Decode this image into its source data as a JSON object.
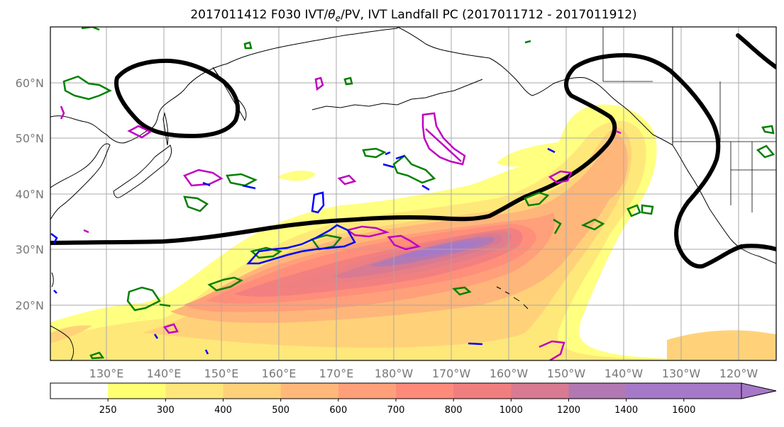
{
  "title": {
    "prefix": "2017011412 F030 IVT/",
    "theta": "θ",
    "theta_sub": "e",
    "suffix": "/PV, IVT Landfall PC (2017011712 - 2017011912)"
  },
  "map": {
    "region": "North Pacific",
    "lat_labels": [
      "60°N",
      "50°N",
      "40°N",
      "30°N",
      "20°N"
    ],
    "lon_labels": [
      "130°E",
      "140°E",
      "150°E",
      "160°E",
      "170°E",
      "180°W",
      "170°W",
      "160°W",
      "150°W",
      "140°W",
      "130°W",
      "120°W"
    ],
    "fill_colors": [
      "#ffffff",
      "#ffff72",
      "#ffe67a",
      "#ffd07a",
      "#ffb87a",
      "#ffa07a",
      "#ff8a7a",
      "#f07e7e",
      "#d87a92",
      "#b278b2",
      "#a678c8"
    ],
    "contour_colors": {
      "landfall_pc": "#000000",
      "pv_a": "#008000",
      "pv_b": "#c000c0",
      "theta_e": "#0000ff"
    }
  },
  "colorbar": {
    "ticks": [
      "250",
      "300",
      "400",
      "500",
      "600",
      "700",
      "800",
      "1000",
      "1200",
      "1400",
      "1600"
    ],
    "colors": [
      "#ffffff",
      "#ffff72",
      "#ffe67a",
      "#ffd07a",
      "#ffb87a",
      "#ffa07a",
      "#ff8a7a",
      "#f07e7e",
      "#d87a92",
      "#b278b2",
      "#a678c8",
      "#a678c8"
    ]
  }
}
